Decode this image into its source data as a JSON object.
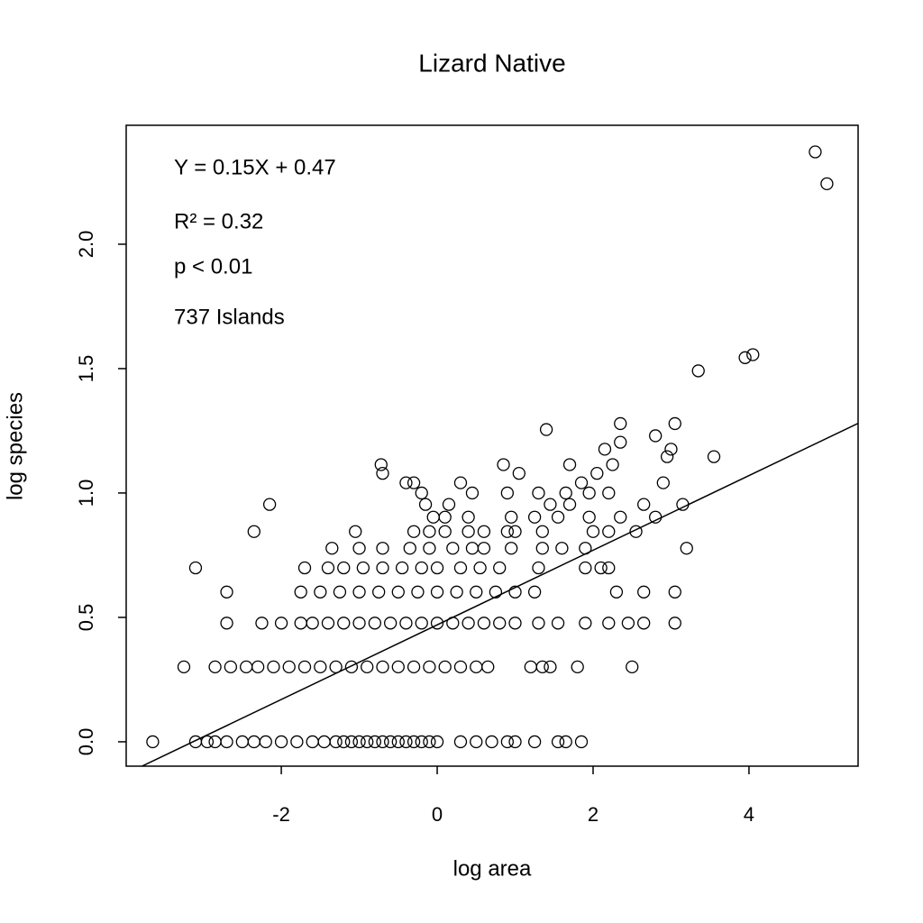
{
  "chart_data": {
    "type": "scatter",
    "title": "Lizard Native",
    "x_label": "log area",
    "y_label": "log species",
    "annotations": [
      "Y = 0.15X + 0.47",
      "R² = 0.32",
      "p < 0.01",
      "737 Islands"
    ],
    "fit": {
      "slope": 0.15,
      "intercept": 0.47
    },
    "xlim": [
      -3.99,
      5.4
    ],
    "ylim": [
      -0.098,
      2.478
    ],
    "xticks": [
      -2,
      0,
      2,
      4
    ],
    "yticks": [
      {
        "value": 0,
        "label": "0.0"
      },
      0.5,
      {
        "value": 1,
        "label": "1.0"
      },
      1.5,
      {
        "value": 2,
        "label": "2.0"
      }
    ],
    "color": "#000000",
    "x": [
      -3.65,
      -3.1,
      -2.95,
      -2.85,
      -2.7,
      -2.5,
      -2.35,
      -2.2,
      -2.0,
      -1.8,
      -1.6,
      -1.45,
      -1.3,
      -1.2,
      -1.1,
      -1.0,
      -0.9,
      -0.8,
      -0.7,
      -0.6,
      -0.5,
      -0.4,
      -0.3,
      -0.2,
      -0.1,
      0,
      0.3,
      0.5,
      0.7,
      0.9,
      1.0,
      1.25,
      1.55,
      1.65,
      1.85,
      -3.25,
      -2.85,
      -2.65,
      -2.45,
      -2.3,
      -2.1,
      -1.9,
      -1.7,
      -1.5,
      -1.3,
      -1.1,
      -0.9,
      -0.7,
      -0.5,
      -0.3,
      -0.1,
      0.1,
      0.3,
      0.5,
      0.65,
      1.2,
      1.35,
      1.45,
      1.8,
      2.5,
      -2.7,
      -2.25,
      -2.0,
      -1.75,
      -1.6,
      -1.4,
      -1.2,
      -1.0,
      -0.8,
      -0.6,
      -0.4,
      -0.2,
      0,
      0.2,
      0.4,
      0.6,
      0.8,
      1.0,
      1.3,
      1.55,
      1.9,
      2.2,
      2.45,
      2.65,
      3.05,
      -2.7,
      -1.75,
      -1.5,
      -1.25,
      -1.0,
      -0.75,
      -0.5,
      -0.25,
      0,
      0.25,
      0.5,
      0.75,
      1.0,
      1.25,
      2.3,
      2.65,
      3.05,
      -3.1,
      -1.7,
      -1.4,
      -1.2,
      -0.95,
      -0.7,
      -0.45,
      -0.2,
      0,
      0.3,
      0.55,
      0.8,
      1.3,
      1.9,
      2.1,
      2.2,
      -1.35,
      -1.0,
      -0.7,
      -0.35,
      -0.1,
      0.2,
      0.45,
      0.6,
      0.95,
      1.35,
      1.6,
      1.9,
      3.2,
      -2.35,
      -1.05,
      -0.3,
      -0.1,
      0.1,
      0.4,
      0.6,
      0.9,
      1.0,
      1.35,
      2.0,
      2.2,
      2.55,
      -0.05,
      0.1,
      0.4,
      0.95,
      1.25,
      1.55,
      1.95,
      2.35,
      2.8,
      -2.15,
      -0.15,
      0.15,
      1.45,
      1.7,
      2.65,
      3.15,
      -0.2,
      0.45,
      0.9,
      1.3,
      1.65,
      1.95,
      2.2,
      -0.72,
      -0.7,
      -0.4,
      -0.3,
      0.3,
      0.85,
      1.05,
      1.4,
      1.7,
      1.85,
      2.05,
      2.15,
      2.25,
      2.35,
      2.35,
      2.8,
      2.9,
      2.95,
      3.0,
      3.05,
      3.55,
      3.35,
      3.95,
      4.05,
      4.85,
      5.0
    ],
    "values": [
      0,
      0,
      0,
      0,
      0,
      0,
      0,
      0,
      0,
      0,
      0,
      0,
      0,
      0,
      0,
      0,
      0,
      0,
      0,
      0,
      0,
      0,
      0,
      0,
      0,
      0,
      0,
      0,
      0,
      0,
      0,
      0,
      0,
      0,
      0,
      0.301,
      0.301,
      0.301,
      0.301,
      0.301,
      0.301,
      0.301,
      0.301,
      0.301,
      0.301,
      0.301,
      0.301,
      0.301,
      0.301,
      0.301,
      0.301,
      0.301,
      0.301,
      0.301,
      0.301,
      0.301,
      0.301,
      0.301,
      0.301,
      0.301,
      0.477,
      0.477,
      0.477,
      0.477,
      0.477,
      0.477,
      0.477,
      0.477,
      0.477,
      0.477,
      0.477,
      0.477,
      0.477,
      0.477,
      0.477,
      0.477,
      0.477,
      0.477,
      0.477,
      0.477,
      0.477,
      0.477,
      0.477,
      0.477,
      0.477,
      0.602,
      0.602,
      0.602,
      0.602,
      0.602,
      0.602,
      0.602,
      0.602,
      0.602,
      0.602,
      0.602,
      0.602,
      0.602,
      0.602,
      0.602,
      0.602,
      0.602,
      0.699,
      0.699,
      0.699,
      0.699,
      0.699,
      0.699,
      0.699,
      0.699,
      0.699,
      0.699,
      0.699,
      0.699,
      0.699,
      0.699,
      0.699,
      0.699,
      0.778,
      0.778,
      0.778,
      0.778,
      0.778,
      0.778,
      0.778,
      0.778,
      0.778,
      0.778,
      0.778,
      0.778,
      0.778,
      0.845,
      0.845,
      0.845,
      0.845,
      0.845,
      0.845,
      0.845,
      0.845,
      0.845,
      0.845,
      0.845,
      0.845,
      0.845,
      0.903,
      0.903,
      0.903,
      0.903,
      0.903,
      0.903,
      0.903,
      0.903,
      0.903,
      0.954,
      0.954,
      0.954,
      0.954,
      0.954,
      0.954,
      0.954,
      1.0,
      1.0,
      1.0,
      1.0,
      1.0,
      1.0,
      1.0,
      1.114,
      1.079,
      1.041,
      1.041,
      1.041,
      1.114,
      1.079,
      1.255,
      1.114,
      1.041,
      1.079,
      1.176,
      1.114,
      1.279,
      1.204,
      1.23,
      1.041,
      1.146,
      1.176,
      1.279,
      1.146,
      1.491,
      1.544,
      1.556,
      2.371,
      2.243
    ]
  }
}
